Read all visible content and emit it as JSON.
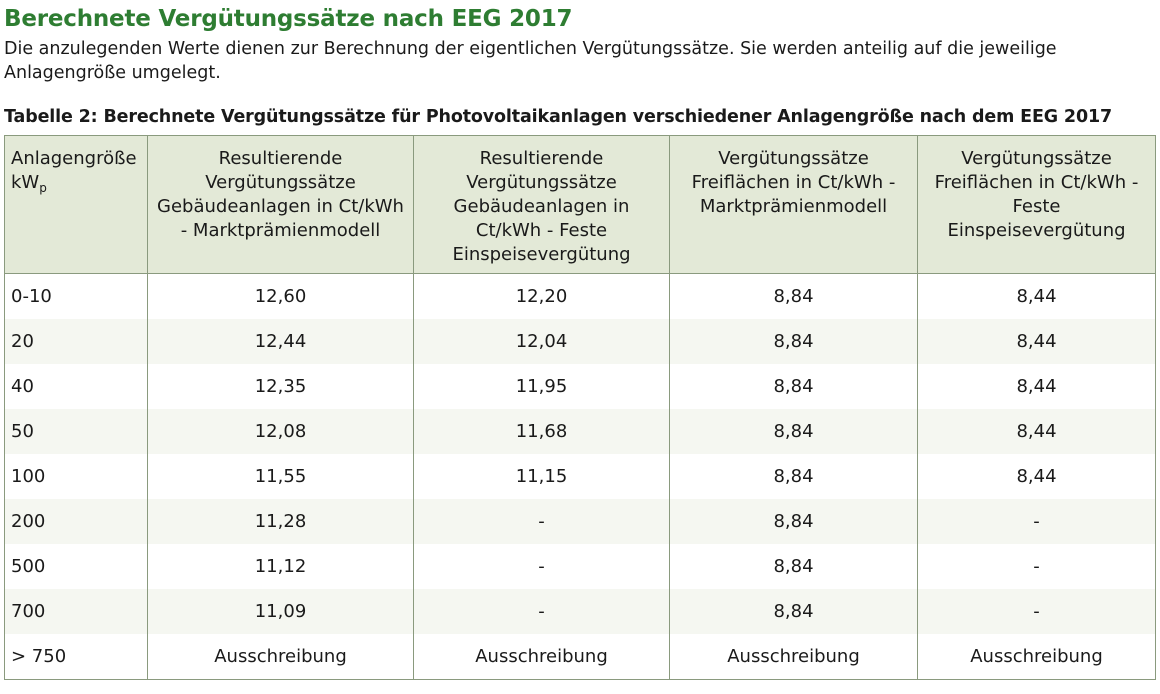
{
  "heading": "Berechnete Vergütungssätze nach EEG 2017",
  "intro": "Die anzulegenden Werte dienen zur Berechnung der eigentlichen Vergütungssätze. Sie werden anteilig auf die jeweilige Anlagengröße umgelegt.",
  "caption": "Tabelle 2: Berechnete Vergütungssätze für Photovoltaikanlagen verschiedener Anlagengröße nach dem EEG 2017",
  "table": {
    "headers": {
      "size_label": "Anlagengröße",
      "size_unit_main": "kW",
      "size_unit_sub": "p",
      "col2": "Resultierende Vergütungssätze Gebäudeanlagen in Ct/kWh - Marktprämienmodell",
      "col3": "Resultierende Vergütungssätze Gebäudeanlagen in Ct/kWh - Feste Einspeisevergütung",
      "col4": "Vergütungssätze Freiflächen in Ct/kWh - Marktprämienmodell",
      "col5": "Vergütungssätze Freiflächen in Ct/kWh - Feste Einspeisevergütung"
    },
    "rows": [
      [
        "0-10",
        "12,60",
        "12,20",
        "8,84",
        "8,44"
      ],
      [
        "20",
        "12,44",
        "12,04",
        "8,84",
        "8,44"
      ],
      [
        "40",
        "12,35",
        "11,95",
        "8,84",
        "8,44"
      ],
      [
        "50",
        "12,08",
        "11,68",
        "8,84",
        "8,44"
      ],
      [
        "100",
        "11,55",
        "11,15",
        "8,84",
        "8,44"
      ],
      [
        "200",
        "11,28",
        "-",
        "8,84",
        "-"
      ],
      [
        "500",
        "11,12",
        "-",
        "8,84",
        "-"
      ],
      [
        "700",
        "11,09",
        "-",
        "8,84",
        "-"
      ],
      [
        "> 750",
        "Ausschreibung",
        "Ausschreibung",
        "Ausschreibung",
        "Ausschreibung"
      ]
    ]
  },
  "colors": {
    "heading": "#2e7d32",
    "header_bg": "#e3e9d7",
    "border": "#8a9a7e",
    "stripe": "#f5f7f1"
  }
}
